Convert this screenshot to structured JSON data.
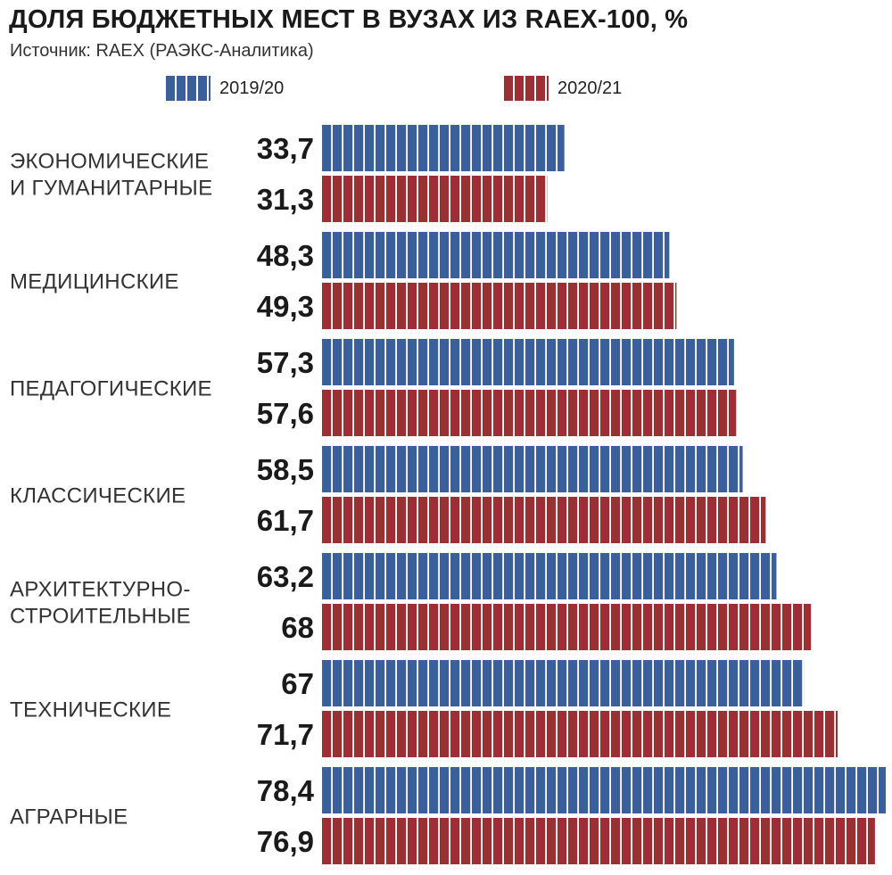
{
  "chart_data": {
    "type": "bar",
    "orientation": "horizontal",
    "title": "ДОЛЯ БЮДЖЕТНЫХ МЕСТ В ВУЗАХ ИЗ RAEX-100, %",
    "subtitle": "Источник: RAEX (РАЭКС-Аналитика)",
    "categories": [
      [
        "ЭКОНОМИЧЕСКИЕ",
        "И ГУМАНИТАРНЫЕ"
      ],
      [
        "МЕДИЦИНСКИЕ"
      ],
      [
        "ПЕДАГОГИЧЕСКИЕ"
      ],
      [
        "КЛАССИЧЕСКИЕ"
      ],
      [
        "АРХИТЕКТУРНО-",
        "СТРОИТЕЛЬНЫЕ"
      ],
      [
        "ТЕХНИЧЕСКИЕ"
      ],
      [
        "АГРАРНЫЕ"
      ]
    ],
    "series": [
      {
        "name": "2019/20",
        "color": "#3a5f9a",
        "values": [
          33.7,
          48.3,
          57.3,
          58.5,
          63.2,
          67,
          78.4
        ],
        "labels": [
          "33,7",
          "48,3",
          "57,3",
          "58,5",
          "63,2",
          "67",
          "78,4"
        ]
      },
      {
        "name": "2020/21",
        "color": "#9b2f33",
        "values": [
          31.3,
          49.3,
          57.6,
          61.7,
          68,
          71.7,
          76.9
        ],
        "labels": [
          "31,3",
          "49,3",
          "57,6",
          "61,7",
          "68",
          "71,7",
          "76,9"
        ]
      }
    ],
    "xlim": [
      0,
      78.4
    ],
    "grid": false,
    "legend": "top"
  }
}
